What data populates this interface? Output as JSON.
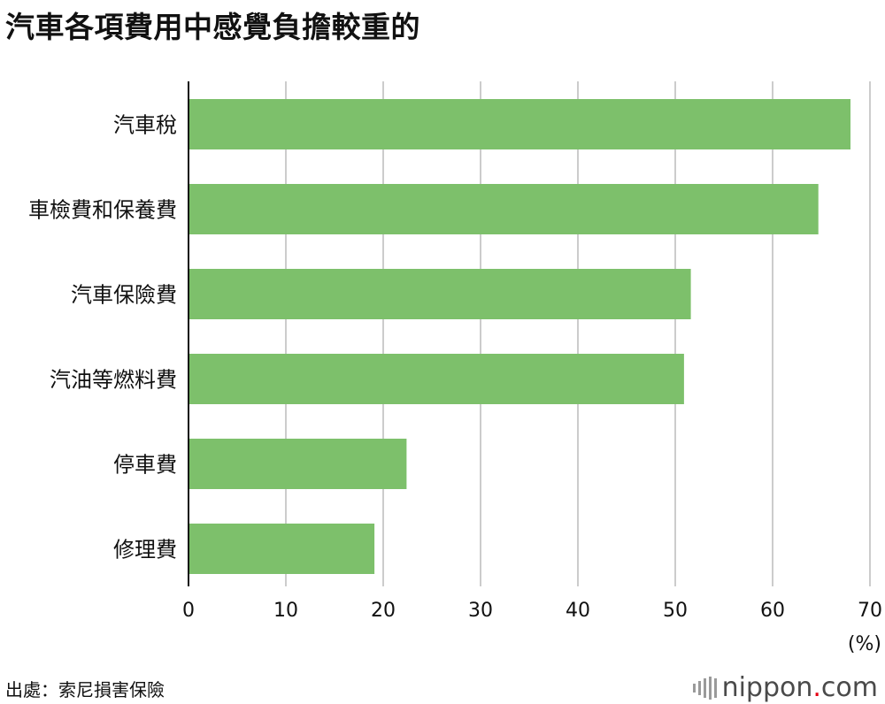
{
  "title": "汽車各項費用中感覺負擔較重的",
  "source": "出處：索尼損害保險",
  "brand": {
    "name": "nippon",
    "dot": ".",
    "tld": "com"
  },
  "colors": {
    "bar": "#7dc06b",
    "grid": "#cccccc",
    "axis": "#111111"
  },
  "chart_data": {
    "type": "bar",
    "orientation": "horizontal",
    "title": "汽車各項費用中感覺負擔較重的",
    "categories": [
      "汽車稅",
      "車檢費和保養費",
      "汽車保險費",
      "汽油等燃料費",
      "停車費",
      "修理費"
    ],
    "values": [
      68.0,
      64.7,
      51.6,
      50.9,
      22.4,
      19.1
    ],
    "xlim": [
      0,
      70
    ],
    "xticks": [
      0,
      10,
      20,
      30,
      40,
      50,
      60,
      70
    ],
    "unit_label": "(%)",
    "grid": true
  }
}
